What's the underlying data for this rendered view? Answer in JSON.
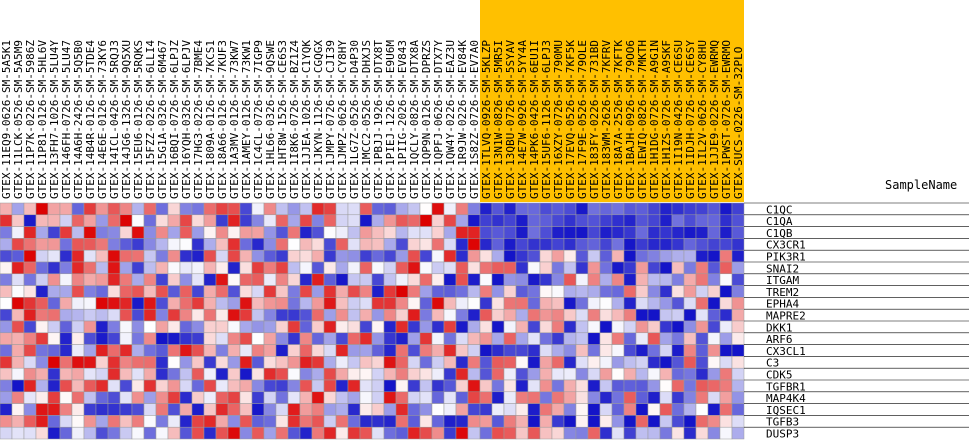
{
  "chart_data": {
    "type": "heatmap",
    "title": "",
    "xlabel": "",
    "ylabel": "",
    "header_label": "SampleName",
    "highlight_color": "#ffc000",
    "color_scale": {
      "low": "#1414c8",
      "mid": "#ffffff",
      "high": "#dc0000"
    },
    "highlight_start": 40,
    "samples": [
      "GTEX-11EQ9-0626-SM-5A5K1",
      "GTEX-11LCK-0526-SM-5A5M9",
      "GTEX-11P7K-0226-SM-5986Z",
      "GTEX-11P81-0126-SM-5HL6V",
      "GTEX-13FH7-1026-SM-5LU4Y",
      "GTEX-146FH-0726-SM-5LU47",
      "GTEX-14A6H-2426-SM-5Q5B0",
      "GTEX-14B4R-0126-SM-5TDE4",
      "GTEX-14E6E-0126-SM-73KY6",
      "GTEX-14ICL-0426-SM-5RQJ3",
      "GTEX-14JG6-1326-SM-9Q5XU",
      "GTEX-15EU6-0126-SM-5RQKS",
      "GTEX-15FZZ-0226-SM-6LLI4",
      "GTEX-15G1A-0326-SM-6M467",
      "GTEX-16BQI-0726-SM-6LPJZ",
      "GTEX-16YQH-0326-SM-6LPJV",
      "GTEX-17HG3-0226-SM-7BME4",
      "GTEX-1809A-0126-SM-7KCS1",
      "GTEX-18A66-0126-SM-7KUF3",
      "GTEX-1A3MV-0126-SM-73KW7",
      "GTEX-1AMEY-0126-SM-73KW1",
      "GTEX-1C4CL-0726-SM-7IGP9",
      "GTEX-1HL66-0326-SM-9QSWE",
      "GTEX-1HT8W-1526-SM-CE6S3",
      "GTEX-1I8K6-0726-SM-BZ1Z4",
      "GTEX-1JJEA-1026-SM-C1YQK",
      "GTEX-1JKYN-1126-SM-CGQGX",
      "GTEX-1JMPY-0726-SM-CJI39",
      "GTEX-1JMPZ-0626-SM-CY8HY",
      "GTEX-1LG7Z-0526-SM-D4P30",
      "GTEX-1MCC2-0526-SM-DHXJS",
      "GTEX-1PBJJ-1926-SM-DTX8T",
      "GTEX-1PIEJ-1226-SM-E9U6M",
      "GTEX-1PIIG-2026-SM-EV843",
      "GTEX-1QCLY-0826-SM-DTX8A",
      "GTEX-1QP9N-0126-SM-DPRZS",
      "GTEX-1QPFJ-0626-SM-DTX7Y",
      "GTEX-1QW4Y-0226-SM-EAZ3U",
      "GTEX-1R9JW-0226-SM-EV84K",
      "GTEX-1S82Z-0726-SM-EV7A0",
      "GTEX-1TLVQ-0926-SM-5KLZP",
      "GTEX-13N1W-0826-SM-5MR5I",
      "GTEX-13QBU-0726-SM-5SYAV",
      "GTEX-14E7W-0926-SM-5YY4A",
      "GTEX-14PK6-0426-SM-6EU1I",
      "GTEX-15UF6-1126-SM-6LPJ3",
      "GTEX-16XZY-0726-SM-790MU",
      "GTEX-17EVQ-0526-SM-7KF5K",
      "GTEX-17F9E-0526-SM-79OLE",
      "GTEX-183FY-0226-SM-731BD",
      "GTEX-183WM-2626-SM-7KFRV",
      "GTEX-18A7A-2526-SM-7KFTK",
      "GTEX-1BAJH-0926-SM-79OO6",
      "GTEX-1EWIQ-0826-SM-7MKTH",
      "GTEX-1H1DG-0726-SM-A9G1N",
      "GTEX-1H1ZS-0726-SM-A9SKF",
      "GTEX-1I19N-0426-SM-CE6SU",
      "GTEX-1IDJH-0726-SM-CE6SY",
      "GTEX-1IL2V-0626-SM-CY8HU",
      "GTEX-1JJE9-0226-SM-EWRMQ",
      "GTEX-1PWST-0726-SM-EWRMO",
      "GTEX-SUCS-0226-SM-32PLO"
    ],
    "genes": [
      "C1QC",
      "C1QA",
      "C1QB",
      "CX3CR1",
      "PIK3R1",
      "SNAI2",
      "ITGAM",
      "TREM2",
      "EPHA4",
      "MAPRE2",
      "DKK1",
      "ARF6",
      "CX3CL1",
      "C3",
      "CDK5",
      "TGFBR1",
      "MAP4K4",
      "IQSEC1",
      "TGFB3",
      "DUSP3"
    ]
  }
}
